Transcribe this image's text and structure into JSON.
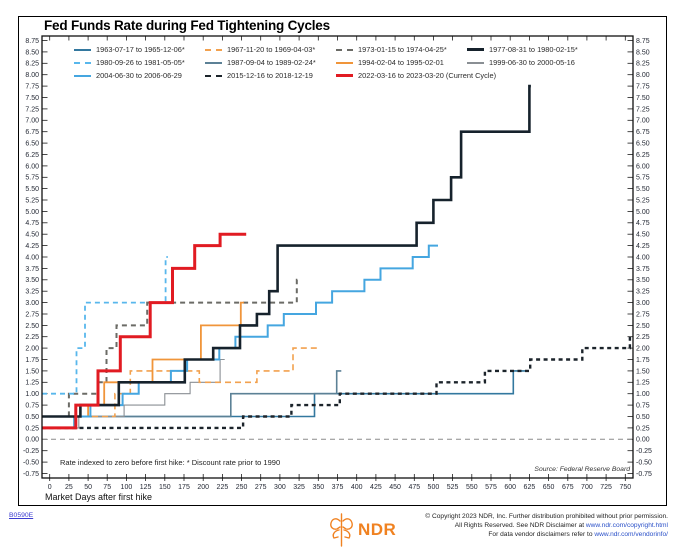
{
  "page": {
    "doc_id": "B0590E"
  },
  "header": {
    "title": "Fed Funds Rate during Fed Tightening Cycles"
  },
  "chart_notes": {
    "footnote": "Rate indexed to zero before first hike: * Discount rate prior to 1990",
    "source": "Source: Federal Reserve Board"
  },
  "footer": {
    "logo_text": "NDR",
    "line1": "© Copyright 2023 NDR, Inc. Further distribution prohibited without prior permission.",
    "line2_prefix": "All Rights Reserved. See NDR Disclaimer at ",
    "line2_link": "www.ndr.com/copyright.html",
    "line3_prefix": "For data vendor disclaimers refer to ",
    "line3_link": "www.ndr.com/vendorinfo/"
  },
  "colors": {
    "accent_red": "#e11b22",
    "logo_orange": "#f08221",
    "link_blue": "#2a50c8",
    "zero_line_gray": "#8c8c8c"
  },
  "chart_data": {
    "type": "line",
    "step": true,
    "title": "Fed Funds Rate during Fed Tightening Cycles",
    "xlabel": "Market Days after first hike",
    "ylabel": "",
    "xlim": [
      -10,
      760
    ],
    "ylim": [
      -0.85,
      8.85
    ],
    "x_tick_min": 0,
    "x_tick_max": 750,
    "x_tick_step": 25,
    "y_tick_min": -0.75,
    "y_tick_max": 8.75,
    "y_tick_step": 0.25,
    "grid": false,
    "legend_position": "top-left",
    "zero_line": 0,
    "series": [
      {
        "name": "1963-07-17 to 1965-12-06*",
        "color": "#33789f",
        "width": 1.6,
        "dash": null,
        "z": 1,
        "end_day": 622,
        "points": [
          [
            0,
            0.5
          ],
          [
            345,
            1.0
          ],
          [
            604,
            1.5
          ]
        ]
      },
      {
        "name": "1967-11-20 to 1969-04-03*",
        "color": "#f2a14e",
        "width": 1.6,
        "dash": [
          6,
          4
        ],
        "z": 4,
        "end_day": 348,
        "points": [
          [
            0,
            0.5
          ],
          [
            85,
            1.0
          ],
          [
            105,
            1.5
          ],
          [
            195,
            1.25
          ],
          [
            270,
            1.5
          ],
          [
            317,
            2.0
          ]
        ]
      },
      {
        "name": "1973-01-15 to 1974-04-25*",
        "color": "#6b6b66",
        "width": 2.0,
        "dash": [
          5,
          4
        ],
        "z": 5,
        "end_day": 326,
        "points": [
          [
            0,
            0.5
          ],
          [
            25,
            1.0
          ],
          [
            63,
            1.25
          ],
          [
            74,
            2.0
          ],
          [
            87,
            2.5
          ],
          [
            127,
            3.0
          ],
          [
            322,
            3.5
          ]
        ]
      },
      {
        "name": "1977-08-31 to 1980-02-15*",
        "color": "#16222c",
        "width": 2.6,
        "dash": null,
        "z": 10,
        "end_day": 627,
        "points": [
          [
            0,
            0.5
          ],
          [
            40,
            0.75
          ],
          [
            90,
            1.25
          ],
          [
            176,
            1.75
          ],
          [
            213,
            2.0
          ],
          [
            248,
            2.5
          ],
          [
            270,
            2.75
          ],
          [
            286,
            3.25
          ],
          [
            297,
            4.25
          ],
          [
            478,
            4.75
          ],
          [
            500,
            5.25
          ],
          [
            523,
            5.75
          ],
          [
            536,
            6.75
          ],
          [
            625,
            7.75
          ]
        ]
      },
      {
        "name": "1980-09-26 to 1981-05-05*",
        "color": "#58b7ec",
        "width": 1.8,
        "dash": [
          5,
          4
        ],
        "z": 6,
        "end_day": 154,
        "points": [
          [
            0,
            1.0
          ],
          [
            35,
            2.0
          ],
          [
            46,
            3.0
          ],
          [
            151,
            4.0
          ]
        ]
      },
      {
        "name": "1987-09-04 to 1989-02-24*",
        "color": "#5c8196",
        "width": 1.6,
        "dash": null,
        "z": 2,
        "end_day": 380,
        "points": [
          [
            0,
            0.5
          ],
          [
            236,
            1.0
          ],
          [
            374,
            1.5
          ]
        ]
      },
      {
        "name": "1994-02-04 to 1995-02-01",
        "color": "#f0953a",
        "width": 1.8,
        "dash": null,
        "z": 7,
        "end_day": 253,
        "points": [
          [
            0,
            0.25
          ],
          [
            32,
            0.5
          ],
          [
            50,
            0.75
          ],
          [
            71,
            1.25
          ],
          [
            134,
            1.75
          ],
          [
            197,
            2.5
          ],
          [
            249,
            3.0
          ]
        ]
      },
      {
        "name": "1999-06-30 to 2000-05-16",
        "color": "#8a8f94",
        "width": 1.1,
        "dash": null,
        "z": 3,
        "end_day": 228,
        "points": [
          [
            0,
            0.25
          ],
          [
            38,
            0.5
          ],
          [
            97,
            0.75
          ],
          [
            150,
            1.0
          ],
          [
            183,
            1.25
          ],
          [
            222,
            1.75
          ]
        ]
      },
      {
        "name": "2004-06-30 to 2006-06-29",
        "color": "#45a6e0",
        "width": 2.0,
        "dash": null,
        "z": 8,
        "end_day": 506,
        "points": [
          [
            0,
            0.25
          ],
          [
            32,
            0.5
          ],
          [
            53,
            0.75
          ],
          [
            95,
            1.0
          ],
          [
            116,
            1.25
          ],
          [
            158,
            1.5
          ],
          [
            179,
            1.75
          ],
          [
            221,
            2.0
          ],
          [
            242,
            2.25
          ],
          [
            284,
            2.5
          ],
          [
            305,
            2.75
          ],
          [
            347,
            3.0
          ],
          [
            368,
            3.25
          ],
          [
            410,
            3.5
          ],
          [
            431,
            3.75
          ],
          [
            473,
            4.0
          ],
          [
            494,
            4.25
          ]
        ]
      },
      {
        "name": "2015-12-16 to 2018-12-19",
        "color": "#1c242b",
        "width": 2.4,
        "dash": [
          4,
          3.5
        ],
        "z": 9,
        "end_day": 760,
        "points": [
          [
            0,
            0.25
          ],
          [
            252,
            0.5
          ],
          [
            315,
            0.75
          ],
          [
            378,
            1.0
          ],
          [
            504,
            1.25
          ],
          [
            567,
            1.5
          ],
          [
            626,
            1.75
          ],
          [
            694,
            2.0
          ],
          [
            756,
            2.25
          ]
        ]
      },
      {
        "name": "2022-03-16 to 2023-03-20 (Current Cycle)",
        "color": "#e11b22",
        "width": 3.0,
        "dash": null,
        "z": 11,
        "end_day": 256,
        "points": [
          [
            0,
            0.25
          ],
          [
            34,
            0.75
          ],
          [
            63,
            1.5
          ],
          [
            92,
            2.25
          ],
          [
            131,
            3.0
          ],
          [
            160,
            3.75
          ],
          [
            189,
            4.25
          ],
          [
            222,
            4.5
          ]
        ]
      }
    ]
  }
}
